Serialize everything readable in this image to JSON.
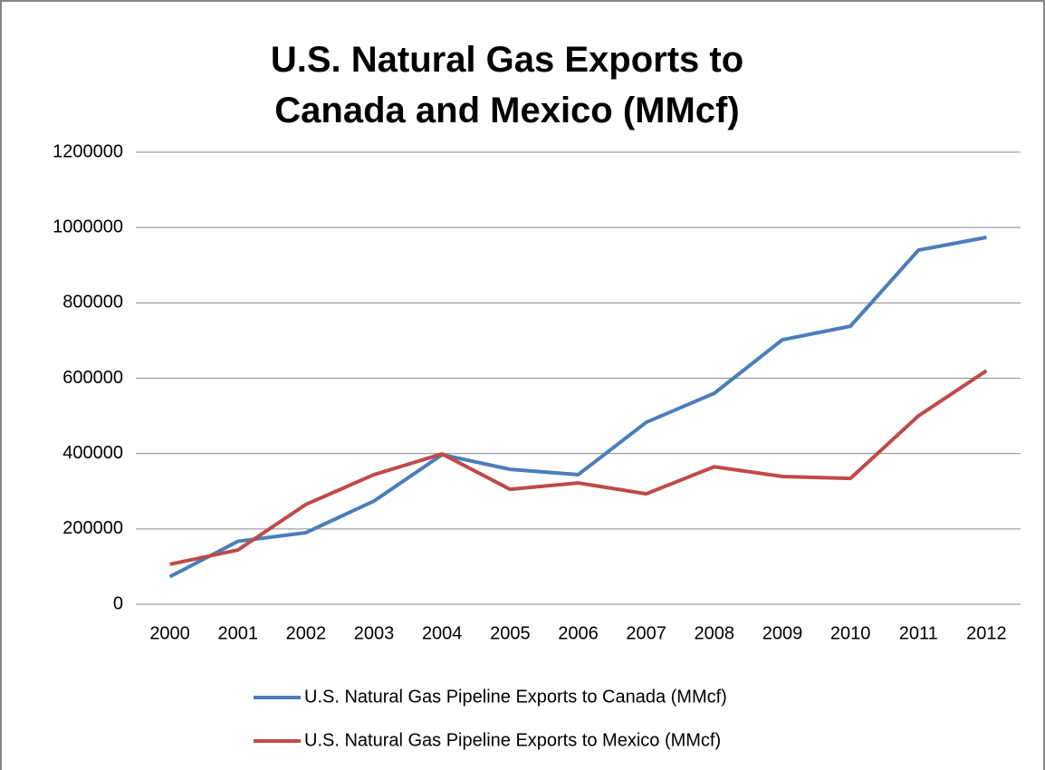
{
  "chart_data": {
    "type": "line",
    "title": "U.S. Natural Gas Exports to Canada and Mexico (MMcf)",
    "categories": [
      "2000",
      "2001",
      "2002",
      "2003",
      "2004",
      "2005",
      "2006",
      "2007",
      "2008",
      "2009",
      "2010",
      "2011",
      "2012"
    ],
    "series": [
      {
        "name": "U.S. Natural Gas Pipeline Exports to Canada (MMcf)",
        "color": "#4a7ebb",
        "values": [
          73000,
          167000,
          190000,
          274000,
          397000,
          358000,
          344000,
          483000,
          560000,
          702000,
          738000,
          940000,
          974000
        ]
      },
      {
        "name": "U.S. Natural Gas Pipeline Exports to Mexico (MMcf)",
        "color": "#be4b48",
        "values": [
          106000,
          144000,
          265000,
          344000,
          399000,
          305000,
          322000,
          293000,
          365000,
          339000,
          334000,
          500000,
          620000
        ]
      }
    ],
    "ylim": [
      0,
      1200000
    ],
    "yticks": [
      0,
      200000,
      400000,
      600000,
      800000,
      1000000,
      1200000
    ],
    "grid": true,
    "legend": "bottom"
  }
}
